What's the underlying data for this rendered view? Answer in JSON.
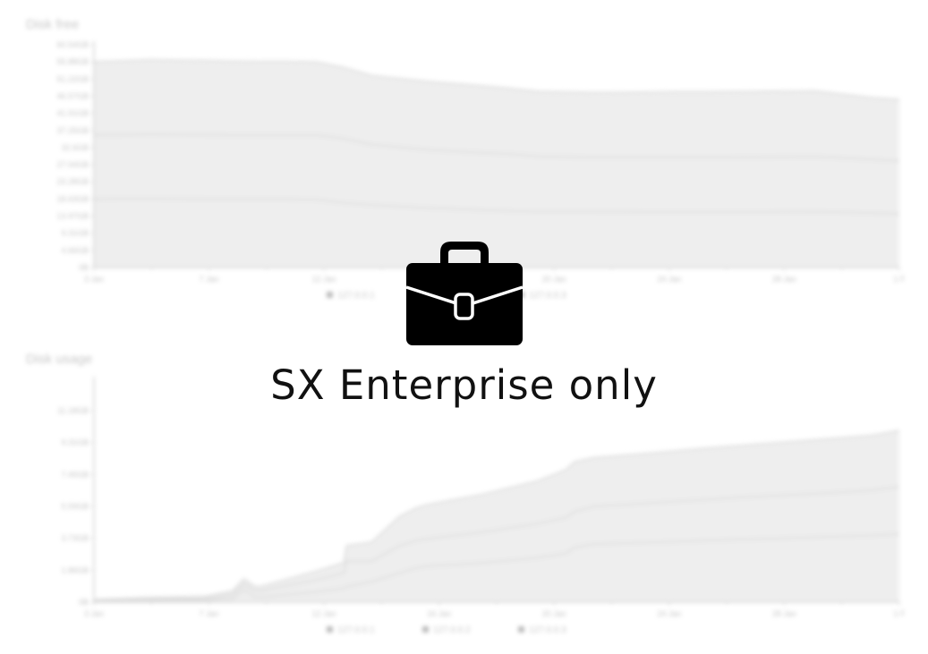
{
  "overlay": {
    "message": "SX Enterprise only",
    "icon": "briefcase-icon"
  },
  "colors": {
    "area_fill": "#eeeeee",
    "series_line": "#dcdcdc",
    "axis": "#d2d2d2",
    "text_muted": "#c2c2c2",
    "overlay_text": "#111111",
    "icon_fill": "#000000"
  },
  "chart_data": [
    {
      "type": "area",
      "title": "Disk free",
      "x_labels": [
        "3 Jan",
        "7 Jan",
        "12 Jan",
        "16 Jan",
        "20 Jan",
        "24 Jan",
        "28 Jan",
        "1 F"
      ],
      "y_tick_labels": [
        "0B",
        "4.66GB",
        "9.31GB",
        "13.97GB",
        "18.63GB",
        "23.28GB",
        "27.94GB",
        "32.6GB",
        "37.25GB",
        "41.91GB",
        "46.57GB",
        "51.22GB",
        "55.88GB",
        "60.54GB"
      ],
      "ylim": [
        0,
        60.54
      ],
      "y_unit": "GB",
      "stacked": true,
      "x": [
        0,
        1,
        2,
        4,
        5,
        6,
        7,
        8,
        9,
        10,
        12,
        14,
        15,
        16,
        18,
        20,
        21,
        22,
        24,
        26,
        28,
        29
      ],
      "series": [
        {
          "name": "127.0.0.1",
          "values": [
            18.6,
            18.7,
            18.7,
            18.6,
            18.6,
            18.6,
            18.6,
            18.4,
            17.6,
            17.0,
            16.2,
            15.6,
            15.4,
            15.2,
            15.2,
            15.1,
            15.1,
            15.1,
            15.1,
            15.2,
            14.8,
            14.6
          ]
        },
        {
          "name": "127.0.0.2",
          "values": [
            17.4,
            17.4,
            17.5,
            17.5,
            17.4,
            17.4,
            17.4,
            17.6,
            17.4,
            16.4,
            15.8,
            15.6,
            15.4,
            15.0,
            14.7,
            14.8,
            14.8,
            14.8,
            14.9,
            14.9,
            14.6,
            14.4
          ]
        },
        {
          "name": "127.0.0.3",
          "values": [
            19.9,
            20.0,
            20.2,
            20.1,
            20.0,
            19.9,
            19.9,
            19.8,
            19.3,
            18.7,
            18.5,
            18.1,
            17.8,
            17.6,
            17.6,
            17.7,
            17.8,
            17.8,
            17.8,
            17.8,
            16.7,
            16.6
          ]
        }
      ],
      "legend": "bottom-center",
      "grid": false
    },
    {
      "type": "area",
      "title": "Disk usage",
      "x_labels": [
        "3 Jan",
        "7 Jan",
        "12 Jan",
        "16 Jan",
        "20 Jan",
        "24 Jan",
        "28 Jan",
        "1 F"
      ],
      "y_tick_labels": [
        "0B",
        "1.86GB",
        "3.73GB",
        "5.59GB",
        "7.45GB",
        "9.31GB",
        "11.18GB"
      ],
      "ylim": [
        0,
        13.0
      ],
      "y_unit": "GB",
      "stacked": true,
      "x": [
        0,
        2,
        4,
        5,
        5.4,
        5.8,
        6,
        8,
        9,
        9.1,
        10,
        11,
        11.6,
        12,
        14,
        16,
        17,
        17.3,
        18,
        20,
        22,
        24,
        26,
        28,
        29
      ],
      "series": [
        {
          "name": "127.0.0.1",
          "values": [
            0.05,
            0.08,
            0.1,
            0.2,
            0.7,
            0.3,
            0.3,
            0.6,
            0.8,
            0.9,
            1.2,
            1.7,
            2.0,
            2.1,
            2.3,
            2.6,
            2.85,
            3.2,
            3.4,
            3.5,
            3.6,
            3.7,
            3.8,
            3.9,
            4.0
          ]
        },
        {
          "name": "127.0.0.2",
          "values": [
            0.04,
            0.08,
            0.1,
            0.25,
            0.35,
            0.35,
            0.35,
            0.7,
            0.9,
            1.5,
            1.2,
            1.6,
            1.6,
            1.6,
            1.8,
            2.0,
            2.1,
            2.1,
            2.2,
            2.3,
            2.4,
            2.5,
            2.55,
            2.65,
            2.75
          ]
        },
        {
          "name": "127.0.0.3",
          "values": [
            0.05,
            0.1,
            0.12,
            0.2,
            0.3,
            0.25,
            0.25,
            0.5,
            0.6,
            0.9,
            1.1,
            1.7,
            1.9,
            2.0,
            2.2,
            2.5,
            2.8,
            2.9,
            2.85,
            2.9,
            3.0,
            3.05,
            3.15,
            3.2,
            3.3
          ]
        }
      ],
      "legend": "bottom-center",
      "grid": false
    }
  ]
}
